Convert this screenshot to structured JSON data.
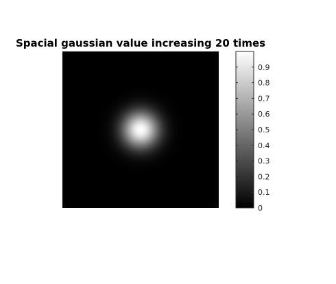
{
  "chart_data": {
    "type": "heatmap",
    "title": "Spacial gaussian value increasing 20 times",
    "xlabel": "",
    "ylabel": "",
    "axes_visible": false,
    "colormap": "gray",
    "clim": [
      0,
      1
    ],
    "grid": false,
    "field": {
      "kind": "2d-gaussian",
      "peak_value": 1.0,
      "center": [
        0.5,
        0.5
      ],
      "sigma": 0.0815
    },
    "colorbar": {
      "location": "right",
      "ticks": [
        0,
        0.1,
        0.2,
        0.3,
        0.4,
        0.5,
        0.6,
        0.7,
        0.8,
        0.9
      ],
      "tick_labels": [
        "0",
        "0.1",
        "0.2",
        "0.3",
        "0.4",
        "0.5",
        "0.6",
        "0.7",
        "0.8",
        "0.9"
      ]
    }
  }
}
